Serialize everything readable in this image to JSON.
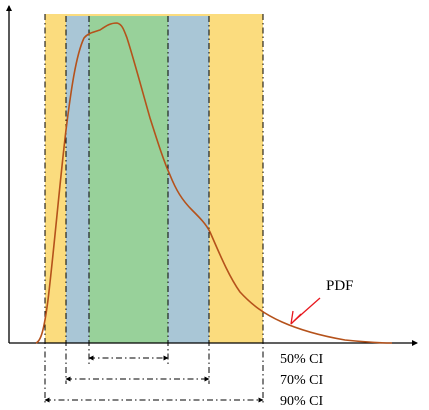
{
  "chart_data": {
    "type": "area",
    "title": "",
    "xlabel": "",
    "ylabel": "",
    "grid": false,
    "curve_label": "PDF",
    "curve_color": "#b5521b",
    "arrow_color": "#e8181e",
    "intervals": [
      {
        "label": "90% CI",
        "color": "#fbdc7e"
      },
      {
        "label": "70% CI",
        "color": "#a9c6d6"
      },
      {
        "label": "50% CI",
        "color": "#98d19a"
      }
    ]
  }
}
